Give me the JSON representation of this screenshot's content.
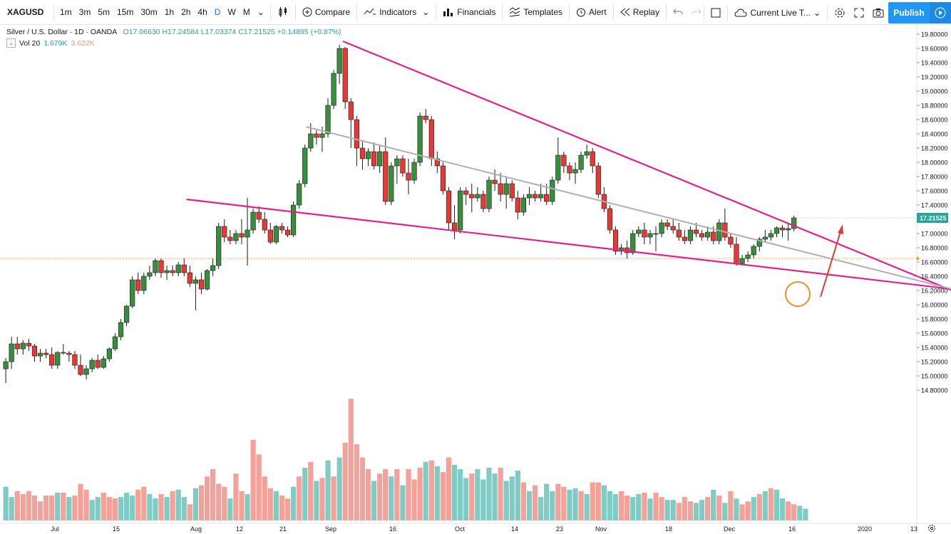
{
  "toolbar": {
    "symbol": "XAGUSD",
    "intervals": [
      "1m",
      "3m",
      "5m",
      "15m",
      "30m",
      "1h",
      "2h",
      "4h",
      "D",
      "W",
      "M"
    ],
    "active_interval": "D",
    "compare_label": "Compare",
    "indicators_label": "Indicators",
    "financials_label": "Financials",
    "templates_label": "Templates",
    "alert_label": "Alert",
    "replay_label": "Replay",
    "layout_label": "Current Live T...",
    "publish_label": "Publish",
    "colors": {
      "accent": "#2196f3",
      "active": "#2962ff"
    }
  },
  "legend": {
    "title": "Silver / U.S. Dollar · 1D · OANDA",
    "open": "O17.06630",
    "high": "H17.24584",
    "low": "L17.03374",
    "close": "C17.21525",
    "change": "+0.14895 (+0.87%)",
    "vol_label": "Vol 20",
    "vol_value1": "1.679K",
    "vol_value2": "3.622K"
  },
  "chart_data": {
    "type": "candlestick",
    "price_axis": {
      "ticks": [
        "19.80000",
        "19.60000",
        "19.40000",
        "19.20000",
        "19.00000",
        "18.80000",
        "18.60000",
        "18.40000",
        "18.20000",
        "18.00000",
        "17.80000",
        "17.60000",
        "17.40000",
        "17.20000",
        "17.00000",
        "16.80000",
        "16.60000",
        "16.40000",
        "16.20000",
        "16.00000",
        "15.80000",
        "15.60000",
        "15.40000",
        "15.20000",
        "15.00000",
        "14.80000"
      ],
      "range": [
        14.66,
        19.96
      ],
      "last_price_label": "17.21525",
      "reference_price": 16.65
    },
    "time_axis": {
      "labels": [
        "Jul",
        "15",
        "Aug",
        "12",
        "21",
        "Sep",
        "16",
        "Oct",
        "14",
        "23",
        "Nov",
        "18",
        "Dec",
        "16",
        "2020",
        "13"
      ]
    },
    "colors": {
      "up": "#26a69a",
      "down": "#ef5350",
      "up_candle": "#388e3c",
      "down_candle": "#e53935",
      "vol_up": "#80cbc4",
      "vol_down": "#f4a19a",
      "trendline": "#e91e8c",
      "midline": "#b0b0b0",
      "arrow": "#e53935",
      "circle": "#f28c28"
    },
    "candles": [
      [
        15.1,
        15.25,
        14.9,
        15.2
      ],
      [
        15.2,
        15.55,
        15.1,
        15.45
      ],
      [
        15.45,
        15.55,
        15.3,
        15.38
      ],
      [
        15.38,
        15.5,
        15.3,
        15.46
      ],
      [
        15.46,
        15.52,
        15.35,
        15.42
      ],
      [
        15.42,
        15.45,
        15.2,
        15.28
      ],
      [
        15.28,
        15.38,
        15.2,
        15.32
      ],
      [
        15.32,
        15.38,
        15.25,
        15.3
      ],
      [
        15.3,
        15.4,
        15.1,
        15.15
      ],
      [
        15.15,
        15.35,
        15.1,
        15.33
      ],
      [
        15.33,
        15.45,
        15.3,
        15.32
      ],
      [
        15.32,
        15.35,
        15.2,
        15.3
      ],
      [
        15.3,
        15.35,
        15.1,
        15.15
      ],
      [
        15.15,
        15.3,
        15.0,
        15.02
      ],
      [
        15.02,
        15.15,
        14.95,
        15.1
      ],
      [
        15.1,
        15.25,
        15.05,
        15.22
      ],
      [
        15.22,
        15.3,
        15.1,
        15.12
      ],
      [
        15.12,
        15.28,
        15.1,
        15.24
      ],
      [
        15.24,
        15.4,
        15.2,
        15.38
      ],
      [
        15.38,
        15.6,
        15.35,
        15.55
      ],
      [
        15.55,
        15.8,
        15.5,
        15.75
      ],
      [
        15.75,
        16.0,
        15.7,
        15.98
      ],
      [
        15.98,
        16.4,
        15.95,
        16.35
      ],
      [
        16.35,
        16.45,
        16.15,
        16.2
      ],
      [
        16.2,
        16.45,
        16.15,
        16.4
      ],
      [
        16.4,
        16.55,
        16.35,
        16.45
      ],
      [
        16.45,
        16.65,
        16.4,
        16.62
      ],
      [
        16.62,
        16.65,
        16.38,
        16.45
      ],
      [
        16.45,
        16.55,
        16.35,
        16.48
      ],
      [
        16.48,
        16.55,
        16.4,
        16.45
      ],
      [
        16.45,
        16.6,
        16.4,
        16.56
      ],
      [
        16.56,
        16.65,
        16.4,
        16.45
      ],
      [
        16.45,
        16.55,
        16.25,
        16.3
      ],
      [
        16.3,
        16.4,
        15.92,
        16.35
      ],
      [
        16.35,
        16.45,
        16.15,
        16.22
      ],
      [
        16.22,
        16.5,
        16.2,
        16.48
      ],
      [
        16.48,
        16.65,
        16.4,
        16.55
      ],
      [
        16.55,
        17.15,
        16.5,
        17.1
      ],
      [
        17.1,
        17.2,
        16.88,
        16.95
      ],
      [
        16.95,
        17.05,
        16.85,
        16.9
      ],
      [
        16.9,
        17.05,
        16.85,
        17.0
      ],
      [
        17.0,
        17.2,
        16.85,
        16.95
      ],
      [
        16.95,
        17.5,
        16.55,
        17.05
      ],
      [
        17.05,
        17.35,
        17.0,
        17.3
      ],
      [
        17.3,
        17.38,
        17.15,
        17.2
      ],
      [
        17.2,
        17.3,
        17.0,
        17.05
      ],
      [
        17.05,
        17.15,
        16.85,
        16.88
      ],
      [
        16.88,
        17.12,
        16.85,
        17.1
      ],
      [
        17.1,
        17.15,
        17.0,
        17.05
      ],
      [
        17.05,
        17.1,
        16.95,
        16.98
      ],
      [
        16.98,
        17.45,
        16.95,
        17.4
      ],
      [
        17.4,
        17.75,
        17.35,
        17.7
      ],
      [
        17.7,
        18.25,
        17.65,
        18.2
      ],
      [
        18.2,
        18.55,
        18.15,
        18.4
      ],
      [
        18.4,
        18.45,
        18.25,
        18.35
      ],
      [
        18.35,
        18.5,
        18.15,
        18.4
      ],
      [
        18.4,
        18.9,
        18.35,
        18.8
      ],
      [
        18.8,
        19.3,
        18.75,
        19.25
      ],
      [
        19.25,
        19.65,
        19.1,
        19.6
      ],
      [
        19.6,
        19.62,
        18.75,
        18.85
      ],
      [
        18.85,
        18.9,
        18.2,
        18.6
      ],
      [
        18.6,
        18.65,
        17.95,
        18.2
      ],
      [
        18.2,
        18.3,
        17.9,
        18.05
      ],
      [
        18.05,
        18.2,
        17.95,
        18.15
      ],
      [
        18.15,
        18.28,
        17.9,
        17.95
      ],
      [
        17.95,
        18.25,
        17.85,
        18.15
      ],
      [
        18.15,
        18.35,
        17.4,
        17.45
      ],
      [
        17.45,
        18.0,
        17.4,
        17.95
      ],
      [
        17.95,
        18.1,
        17.7,
        18.05
      ],
      [
        18.05,
        18.1,
        17.8,
        17.85
      ],
      [
        17.85,
        18.05,
        17.55,
        17.75
      ],
      [
        17.75,
        18.05,
        17.7,
        18.0
      ],
      [
        18.0,
        18.7,
        17.95,
        18.65
      ],
      [
        18.65,
        18.75,
        18.55,
        18.6
      ],
      [
        18.6,
        18.65,
        17.95,
        18.05
      ],
      [
        18.05,
        18.15,
        17.85,
        17.95
      ],
      [
        17.95,
        18.0,
        17.55,
        17.6
      ],
      [
        17.6,
        17.65,
        17.05,
        17.15
      ],
      [
        17.15,
        17.4,
        16.92,
        17.05
      ],
      [
        17.05,
        17.65,
        17.0,
        17.6
      ],
      [
        17.6,
        17.65,
        17.4,
        17.55
      ],
      [
        17.55,
        17.7,
        17.3,
        17.5
      ],
      [
        17.5,
        17.65,
        17.45,
        17.55
      ],
      [
        17.55,
        17.6,
        17.3,
        17.35
      ],
      [
        17.35,
        17.8,
        17.3,
        17.75
      ],
      [
        17.75,
        17.9,
        17.6,
        17.7
      ],
      [
        17.7,
        17.85,
        17.45,
        17.55
      ],
      [
        17.55,
        17.8,
        17.35,
        17.7
      ],
      [
        17.7,
        17.75,
        17.45,
        17.5
      ],
      [
        17.5,
        17.6,
        17.2,
        17.3
      ],
      [
        17.3,
        17.55,
        17.25,
        17.5
      ],
      [
        17.5,
        17.65,
        17.4,
        17.55
      ],
      [
        17.55,
        17.6,
        17.45,
        17.5
      ],
      [
        17.5,
        17.7,
        17.45,
        17.55
      ],
      [
        17.55,
        17.7,
        17.4,
        17.45
      ],
      [
        17.45,
        17.8,
        17.4,
        17.75
      ],
      [
        17.75,
        18.35,
        17.7,
        18.1
      ],
      [
        18.1,
        18.15,
        17.85,
        17.95
      ],
      [
        17.95,
        18.0,
        17.75,
        17.85
      ],
      [
        17.85,
        18.0,
        17.7,
        17.9
      ],
      [
        17.9,
        18.15,
        17.85,
        18.1
      ],
      [
        18.1,
        18.25,
        18.05,
        18.15
      ],
      [
        18.15,
        18.2,
        17.85,
        17.95
      ],
      [
        17.95,
        18.0,
        17.5,
        17.55
      ],
      [
        17.55,
        17.65,
        17.3,
        17.35
      ],
      [
        17.35,
        17.4,
        17.0,
        17.05
      ],
      [
        17.05,
        17.1,
        16.7,
        16.75
      ],
      [
        16.75,
        16.85,
        16.7,
        16.8
      ],
      [
        16.8,
        16.9,
        16.65,
        16.73
      ],
      [
        16.73,
        17.05,
        16.7,
        17.0
      ],
      [
        17.0,
        17.1,
        16.95,
        17.05
      ],
      [
        17.05,
        17.15,
        16.85,
        16.95
      ],
      [
        16.95,
        17.05,
        16.85,
        17.0
      ],
      [
        17.0,
        17.1,
        16.75,
        17.0
      ],
      [
        17.0,
        17.2,
        16.95,
        17.15
      ],
      [
        17.15,
        17.2,
        17.05,
        17.1
      ],
      [
        17.1,
        17.2,
        17.0,
        17.05
      ],
      [
        17.05,
        17.15,
        16.9,
        16.95
      ],
      [
        16.95,
        17.05,
        16.85,
        16.9
      ],
      [
        16.9,
        17.1,
        16.85,
        17.05
      ],
      [
        17.05,
        17.15,
        16.95,
        17.0
      ],
      [
        17.0,
        17.05,
        16.9,
        16.95
      ],
      [
        16.95,
        17.1,
        16.9,
        17.02
      ],
      [
        17.02,
        17.1,
        16.85,
        16.9
      ],
      [
        16.9,
        17.2,
        16.85,
        17.15
      ],
      [
        17.15,
        17.35,
        16.9,
        16.95
      ],
      [
        16.95,
        17.0,
        16.8,
        16.85
      ],
      [
        16.85,
        16.95,
        16.55,
        16.58
      ],
      [
        16.58,
        16.7,
        16.55,
        16.65
      ],
      [
        16.65,
        16.75,
        16.6,
        16.7
      ],
      [
        16.7,
        16.85,
        16.65,
        16.82
      ],
      [
        16.82,
        16.95,
        16.75,
        16.92
      ],
      [
        16.92,
        17.05,
        16.88,
        16.95
      ],
      [
        16.95,
        17.05,
        16.9,
        17.0
      ],
      [
        17.0,
        17.1,
        16.95,
        17.08
      ],
      [
        17.08,
        17.12,
        16.95,
        17.05
      ],
      [
        17.05,
        17.15,
        16.9,
        17.07
      ],
      [
        17.07,
        17.25,
        17.03,
        17.22
      ]
    ],
    "volumes": [
      [
        2.3,
        1
      ],
      [
        1.6,
        1
      ],
      [
        2.0,
        0
      ],
      [
        1.8,
        0
      ],
      [
        2.0,
        0
      ],
      [
        1.7,
        0
      ],
      [
        1.3,
        0
      ],
      [
        1.7,
        0
      ],
      [
        1.7,
        0
      ],
      [
        1.9,
        1
      ],
      [
        1.9,
        0
      ],
      [
        1.6,
        1
      ],
      [
        1.7,
        0
      ],
      [
        2.5,
        0
      ],
      [
        2.1,
        0
      ],
      [
        1.4,
        1
      ],
      [
        1.6,
        1
      ],
      [
        1.9,
        0
      ],
      [
        1.6,
        0
      ],
      [
        1.5,
        0
      ],
      [
        1.6,
        1
      ],
      [
        1.9,
        1
      ],
      [
        1.7,
        1
      ],
      [
        2.1,
        0
      ],
      [
        2.3,
        0
      ],
      [
        1.8,
        1
      ],
      [
        1.5,
        1
      ],
      [
        1.8,
        0
      ],
      [
        1.6,
        1
      ],
      [
        2.0,
        0
      ],
      [
        2.1,
        1
      ],
      [
        1.6,
        1
      ],
      [
        1.1,
        0
      ],
      [
        2.2,
        1
      ],
      [
        2.4,
        0
      ],
      [
        3.0,
        0
      ],
      [
        3.5,
        0
      ],
      [
        2.5,
        0
      ],
      [
        2.3,
        0
      ],
      [
        1.5,
        1
      ],
      [
        3.2,
        0
      ],
      [
        2.0,
        0
      ],
      [
        1.8,
        1
      ],
      [
        5.5,
        0
      ],
      [
        4.5,
        0
      ],
      [
        3.0,
        0
      ],
      [
        2.2,
        0
      ],
      [
        2.0,
        1
      ],
      [
        1.7,
        0
      ],
      [
        1.5,
        0
      ],
      [
        2.3,
        1
      ],
      [
        3.0,
        0
      ],
      [
        3.6,
        1
      ],
      [
        4.0,
        0
      ],
      [
        2.7,
        1
      ],
      [
        2.9,
        0
      ],
      [
        4.1,
        1
      ],
      [
        3.0,
        0
      ],
      [
        4.3,
        1
      ],
      [
        5.3,
        0
      ],
      [
        8.3,
        0
      ],
      [
        5.2,
        0
      ],
      [
        4.3,
        0
      ],
      [
        3.5,
        0
      ],
      [
        2.7,
        1
      ],
      [
        3.2,
        0
      ],
      [
        3.5,
        0
      ],
      [
        3.0,
        1
      ],
      [
        3.5,
        0
      ],
      [
        2.4,
        1
      ],
      [
        3.5,
        0
      ],
      [
        2.8,
        0
      ],
      [
        3.6,
        0
      ],
      [
        4.0,
        1
      ],
      [
        4.1,
        0
      ],
      [
        3.7,
        1
      ],
      [
        3.3,
        0
      ],
      [
        4.3,
        0
      ],
      [
        3.8,
        1
      ],
      [
        3.5,
        1
      ],
      [
        2.9,
        1
      ],
      [
        3.2,
        0
      ],
      [
        3.5,
        1
      ],
      [
        2.8,
        1
      ],
      [
        3.6,
        1
      ],
      [
        3.2,
        1
      ],
      [
        3.6,
        0
      ],
      [
        2.7,
        1
      ],
      [
        3.0,
        1
      ],
      [
        3.4,
        1
      ],
      [
        2.6,
        0
      ],
      [
        2.0,
        1
      ],
      [
        2.4,
        0
      ],
      [
        1.6,
        1
      ],
      [
        2.5,
        1
      ],
      [
        2.0,
        1
      ],
      [
        2.5,
        0
      ],
      [
        2.3,
        0
      ],
      [
        2.1,
        1
      ],
      [
        2.2,
        1
      ],
      [
        2.0,
        0
      ],
      [
        1.8,
        1
      ],
      [
        2.6,
        0
      ],
      [
        2.6,
        0
      ],
      [
        2.4,
        1
      ],
      [
        2.0,
        1
      ],
      [
        1.8,
        1
      ],
      [
        2.0,
        0
      ],
      [
        1.7,
        0
      ],
      [
        1.6,
        1
      ],
      [
        1.8,
        1
      ],
      [
        1.9,
        0
      ],
      [
        1.5,
        1
      ],
      [
        1.9,
        0
      ],
      [
        1.6,
        0
      ],
      [
        1.4,
        1
      ],
      [
        1.4,
        1
      ],
      [
        1.2,
        0
      ],
      [
        1.6,
        0
      ],
      [
        1.3,
        0
      ],
      [
        1.2,
        1
      ],
      [
        1.4,
        1
      ],
      [
        1.6,
        0
      ],
      [
        2.1,
        1
      ],
      [
        1.7,
        0
      ],
      [
        1.2,
        1
      ],
      [
        2.0,
        0
      ],
      [
        1.5,
        1
      ],
      [
        1.1,
        0
      ],
      [
        1.3,
        0
      ],
      [
        1.6,
        1
      ],
      [
        1.8,
        0
      ],
      [
        2.0,
        1
      ],
      [
        2.2,
        0
      ],
      [
        2.1,
        1
      ],
      [
        1.5,
        1
      ],
      [
        1.3,
        0
      ],
      [
        1.1,
        0
      ],
      [
        1.0,
        1
      ],
      [
        0.8,
        1
      ]
    ],
    "volume_scale_max": 8.5,
    "trendlines": [
      {
        "name": "upper-trendline",
        "from": [
          58.6,
          19.7
        ],
        "to": [
          164.5,
          16.2
        ]
      },
      {
        "name": "lower-trendline",
        "from": [
          31.4,
          17.48
        ],
        "to": [
          164.5,
          16.22
        ]
      },
      {
        "name": "mid-trendline",
        "from": [
          52.2,
          18.5
        ],
        "to": [
          164.5,
          16.22
        ]
      }
    ]
  }
}
